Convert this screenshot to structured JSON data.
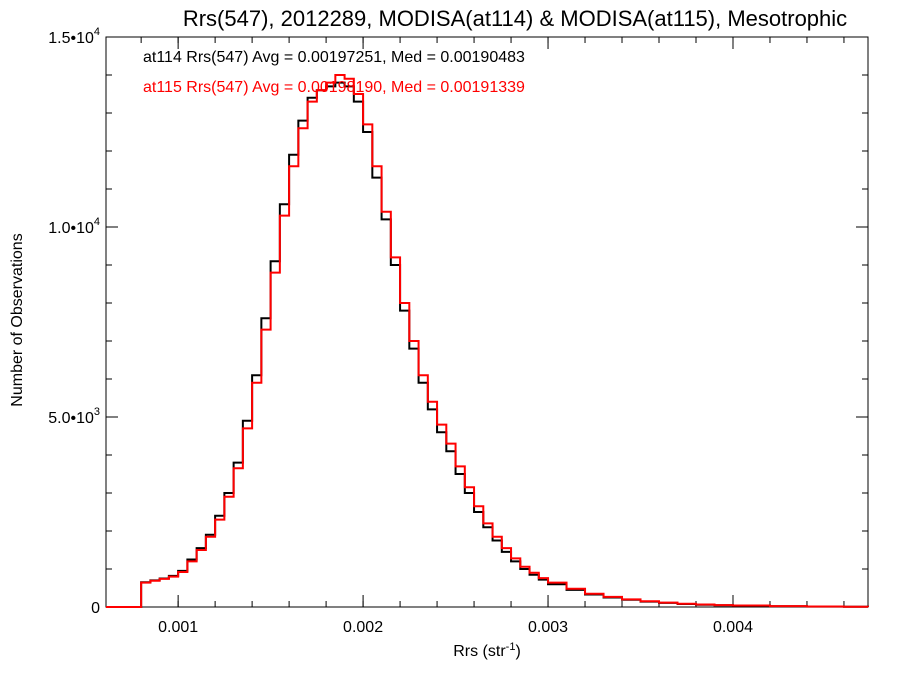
{
  "chart_data": {
    "type": "histogram",
    "title": "Rrs(547), 2012289, MODISA(at114) & MODISA(at115), Mesotrophic",
    "xlabel": "Rrs (str",
    "xlabel_sup": "-1",
    "xlabel_close": ")",
    "ylabel": "Number of Observations",
    "xlim": [
      0.00061,
      0.00473
    ],
    "ylim": [
      0,
      15000
    ],
    "x_ticks": [
      {
        "value": 0.001,
        "label": "0.001"
      },
      {
        "value": 0.002,
        "label": "0.002"
      },
      {
        "value": 0.003,
        "label": "0.003"
      },
      {
        "value": 0.004,
        "label": "0.004"
      }
    ],
    "y_ticks": [
      {
        "value": 0,
        "mant": "0",
        "exp": ""
      },
      {
        "value": 5000,
        "mant": "5.0•10",
        "exp": "3"
      },
      {
        "value": 10000,
        "mant": "1.0•10",
        "exp": "4"
      },
      {
        "value": 15000,
        "mant": "1.5•10",
        "exp": "4"
      }
    ],
    "series": [
      {
        "name": "at114",
        "color": "#000000",
        "legend": "at114 Rrs(547) Avg = 0.00197251, Med = 0.00190483",
        "points": [
          [
            0.00061,
            0
          ],
          [
            0.00078,
            0
          ],
          [
            0.0008,
            650
          ],
          [
            0.00085,
            700
          ],
          [
            0.0009,
            750
          ],
          [
            0.00095,
            820
          ],
          [
            0.001,
            950
          ],
          [
            0.00105,
            1250
          ],
          [
            0.0011,
            1550
          ],
          [
            0.00115,
            1900
          ],
          [
            0.0012,
            2400
          ],
          [
            0.00125,
            3000
          ],
          [
            0.0013,
            3800
          ],
          [
            0.00135,
            4900
          ],
          [
            0.0014,
            6100
          ],
          [
            0.00145,
            7600
          ],
          [
            0.0015,
            9100
          ],
          [
            0.00155,
            10600
          ],
          [
            0.0016,
            11900
          ],
          [
            0.00165,
            12800
          ],
          [
            0.0017,
            13400
          ],
          [
            0.00175,
            13600
          ],
          [
            0.0018,
            13700
          ],
          [
            0.00185,
            13800
          ],
          [
            0.0019,
            13700
          ],
          [
            0.00195,
            13300
          ],
          [
            0.002,
            12500
          ],
          [
            0.00205,
            11300
          ],
          [
            0.0021,
            10200
          ],
          [
            0.00215,
            9000
          ],
          [
            0.0022,
            7800
          ],
          [
            0.00225,
            6800
          ],
          [
            0.0023,
            5900
          ],
          [
            0.00235,
            5200
          ],
          [
            0.0024,
            4600
          ],
          [
            0.00245,
            4100
          ],
          [
            0.0025,
            3500
          ],
          [
            0.00255,
            3000
          ],
          [
            0.0026,
            2500
          ],
          [
            0.00265,
            2100
          ],
          [
            0.0027,
            1750
          ],
          [
            0.00275,
            1450
          ],
          [
            0.0028,
            1200
          ],
          [
            0.00285,
            1000
          ],
          [
            0.0029,
            850
          ],
          [
            0.00295,
            720
          ],
          [
            0.003,
            600
          ],
          [
            0.0031,
            450
          ],
          [
            0.0032,
            330
          ],
          [
            0.0033,
            250
          ],
          [
            0.0034,
            190
          ],
          [
            0.0035,
            140
          ],
          [
            0.0036,
            110
          ],
          [
            0.0037,
            80
          ],
          [
            0.0038,
            60
          ],
          [
            0.0039,
            45
          ],
          [
            0.004,
            35
          ],
          [
            0.0042,
            20
          ],
          [
            0.0044,
            10
          ],
          [
            0.0046,
            5
          ],
          [
            0.00473,
            3
          ]
        ]
      },
      {
        "name": "at115",
        "color": "#ff0000",
        "legend": "at115 Rrs(547) Avg = 0.00198190, Med = 0.00191339",
        "points": [
          [
            0.00061,
            0
          ],
          [
            0.00078,
            0
          ],
          [
            0.0008,
            640
          ],
          [
            0.00085,
            690
          ],
          [
            0.0009,
            740
          ],
          [
            0.00095,
            800
          ],
          [
            0.001,
            920
          ],
          [
            0.00105,
            1200
          ],
          [
            0.0011,
            1500
          ],
          [
            0.00115,
            1850
          ],
          [
            0.0012,
            2300
          ],
          [
            0.00125,
            2900
          ],
          [
            0.0013,
            3650
          ],
          [
            0.00135,
            4700
          ],
          [
            0.0014,
            5900
          ],
          [
            0.00145,
            7300
          ],
          [
            0.0015,
            8800
          ],
          [
            0.00155,
            10300
          ],
          [
            0.0016,
            11600
          ],
          [
            0.00165,
            12600
          ],
          [
            0.0017,
            13300
          ],
          [
            0.00175,
            13600
          ],
          [
            0.0018,
            13800
          ],
          [
            0.00185,
            14000
          ],
          [
            0.0019,
            13900
          ],
          [
            0.00195,
            13500
          ],
          [
            0.002,
            12700
          ],
          [
            0.00205,
            11600
          ],
          [
            0.0021,
            10400
          ],
          [
            0.00215,
            9200
          ],
          [
            0.0022,
            8000
          ],
          [
            0.00225,
            7000
          ],
          [
            0.0023,
            6100
          ],
          [
            0.00235,
            5400
          ],
          [
            0.0024,
            4800
          ],
          [
            0.00245,
            4300
          ],
          [
            0.0025,
            3700
          ],
          [
            0.00255,
            3150
          ],
          [
            0.0026,
            2650
          ],
          [
            0.00265,
            2200
          ],
          [
            0.0027,
            1850
          ],
          [
            0.00275,
            1550
          ],
          [
            0.0028,
            1280
          ],
          [
            0.00285,
            1060
          ],
          [
            0.0029,
            900
          ],
          [
            0.00295,
            760
          ],
          [
            0.003,
            640
          ],
          [
            0.0031,
            480
          ],
          [
            0.0032,
            350
          ],
          [
            0.0033,
            265
          ],
          [
            0.0034,
            200
          ],
          [
            0.0035,
            150
          ],
          [
            0.0036,
            115
          ],
          [
            0.0037,
            85
          ],
          [
            0.0038,
            65
          ],
          [
            0.0039,
            50
          ],
          [
            0.004,
            38
          ],
          [
            0.0042,
            22
          ],
          [
            0.0044,
            12
          ],
          [
            0.0046,
            6
          ],
          [
            0.00473,
            3
          ]
        ]
      }
    ]
  }
}
